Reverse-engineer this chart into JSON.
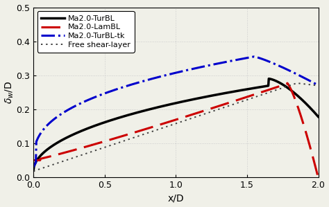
{
  "title": "",
  "xlabel": "x/D",
  "ylabel": "$\\delta_w$/D",
  "xlim": [
    0,
    2.0
  ],
  "ylim": [
    0,
    0.5
  ],
  "xticks": [
    0,
    0.5,
    1.0,
    1.5,
    2.0
  ],
  "yticks": [
    0,
    0.1,
    0.2,
    0.3,
    0.4,
    0.5
  ],
  "background_color": "#f0f0e8",
  "line_colors": {
    "TurBL": "#000000",
    "LamBL": "#cc0000",
    "TurBL_tk": "#0000cc",
    "FreeShear": "#404040"
  },
  "legend_labels": [
    "Ma2.0-TurBL",
    "Ma2.0-LamBL",
    "Ma2.0-TurBL-tk",
    "Free shear-layer"
  ]
}
